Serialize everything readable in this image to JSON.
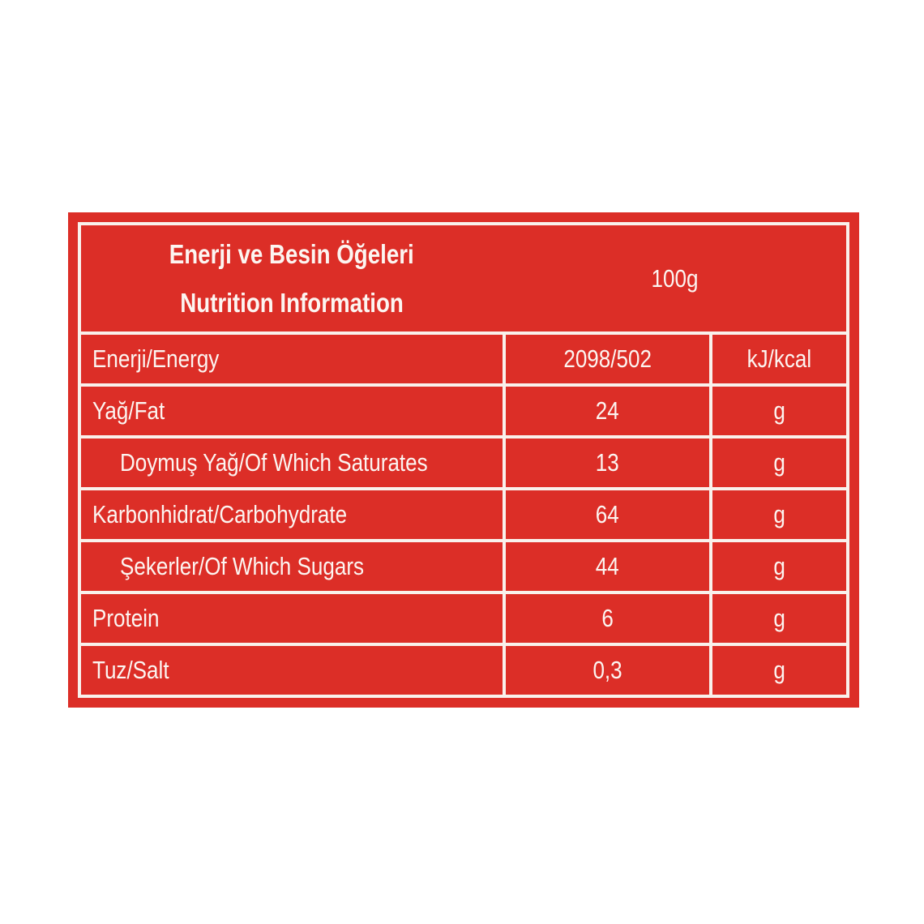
{
  "table": {
    "header": {
      "title_line1": "Enerji ve Besin Öğeleri",
      "title_line2": "Nutrition Information",
      "amount_label": "100g"
    },
    "rows": [
      {
        "label": "Enerji/Energy",
        "value": "2098/502",
        "unit": "kJ/kcal",
        "indent": false
      },
      {
        "label": "Yağ/Fat",
        "value": "24",
        "unit": "g",
        "indent": false
      },
      {
        "label": "Doymuş Yağ/Of Which Saturates",
        "value": "13",
        "unit": "g",
        "indent": true
      },
      {
        "label": "Karbonhidrat/Carbohydrate",
        "value": "64",
        "unit": "g",
        "indent": false
      },
      {
        "label": "Şekerler/Of Which Sugars",
        "value": "44",
        "unit": "g",
        "indent": true
      },
      {
        "label": "Protein",
        "value": "6",
        "unit": "g",
        "indent": false
      },
      {
        "label": "Tuz/Salt",
        "value": "0,3",
        "unit": "g",
        "indent": false
      }
    ],
    "colors": {
      "background_red": "#dc2e27",
      "grid_line": "#f9f1ec",
      "text": "#fcf5f1",
      "page_background": "#ffffff"
    }
  }
}
